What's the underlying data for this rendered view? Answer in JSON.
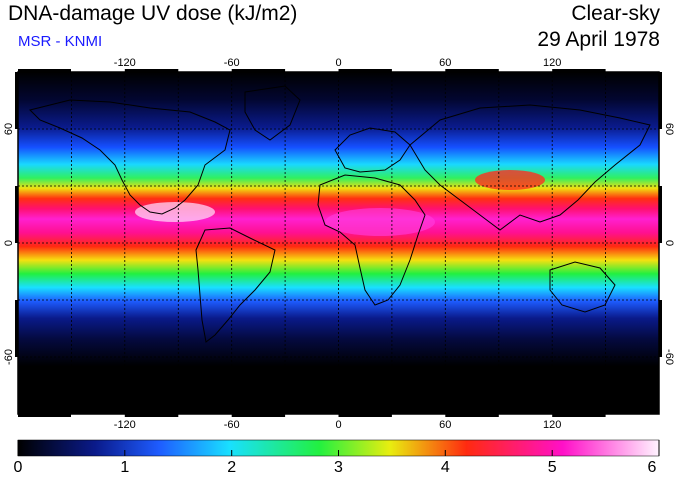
{
  "header": {
    "title": "DNA-damage UV dose (kJ/m2)",
    "source": "MSR - KNMI",
    "condition": "Clear-sky",
    "date": "29 April 1978"
  },
  "map": {
    "projection": "equirectangular",
    "lon_range": [
      -180,
      180
    ],
    "lat_range": [
      -90,
      90
    ],
    "grid_lines": true,
    "lon_ticks": [
      "-120",
      "-60",
      "0",
      "60",
      "120"
    ],
    "lat_ticks": [
      "60",
      "0",
      "-60"
    ],
    "lat_ticks_right": [
      "60",
      "0",
      "-60"
    ]
  },
  "colorbar": {
    "min": 0,
    "max": 6,
    "labels": [
      "0",
      "1",
      "2",
      "3",
      "4",
      "5",
      "6"
    ],
    "colors": [
      "#000000",
      "#0a1a8a",
      "#1e5cff",
      "#19e0ff",
      "#22f040",
      "#e8ee10",
      "#ff2a10",
      "#ff10c8",
      "#fff4ff"
    ]
  }
}
